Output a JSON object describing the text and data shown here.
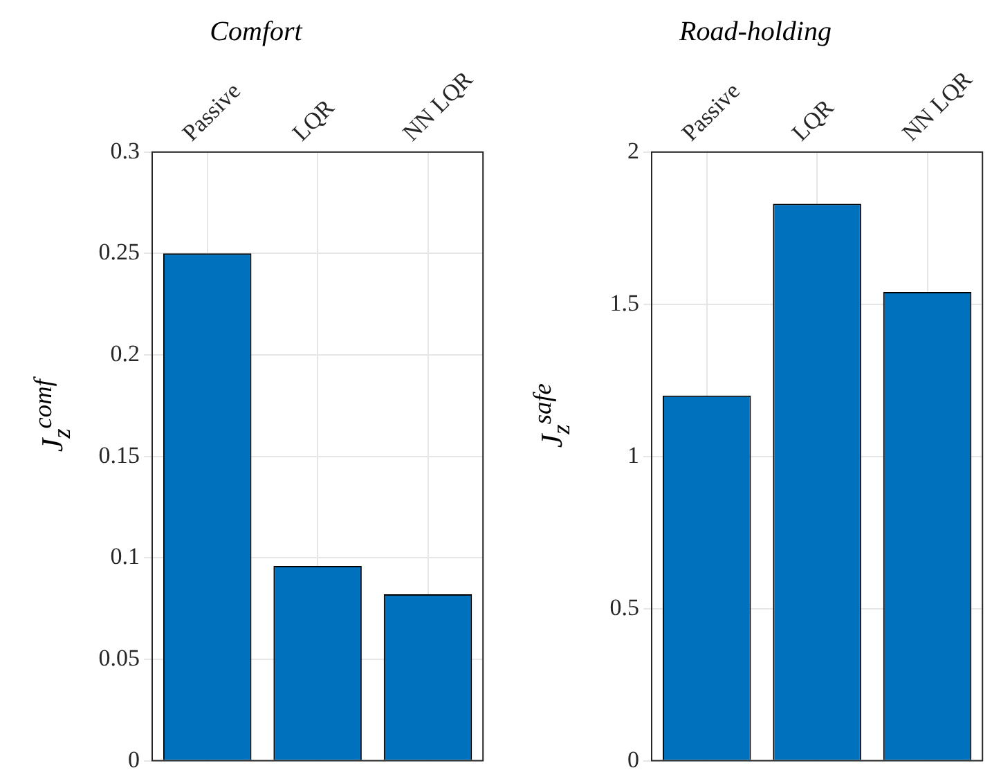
{
  "chart_data": [
    {
      "type": "bar",
      "title": "Comfort",
      "ylabel": "J$_{z}$$^{comf}$",
      "categories": [
        "Passive",
        "LQR",
        "NN LQR"
      ],
      "values": [
        0.25,
        0.096,
        0.082
      ],
      "color": "#0072bd",
      "ylim": [
        0,
        0.3
      ],
      "yticks": [
        0,
        0.05,
        0.1,
        0.15,
        0.2,
        0.25,
        0.3
      ],
      "grid": true
    },
    {
      "type": "bar",
      "title": "Road-holding",
      "ylabel": "J$_{z}$$^{safe}$",
      "categories": [
        "Passive",
        "LQR",
        "NN LQR"
      ],
      "values": [
        1.2,
        1.83,
        1.54
      ],
      "color": "#0072bd",
      "ylim": [
        0,
        2
      ],
      "yticks": [
        0,
        0.5,
        1,
        1.5,
        2
      ],
      "grid": true
    }
  ]
}
